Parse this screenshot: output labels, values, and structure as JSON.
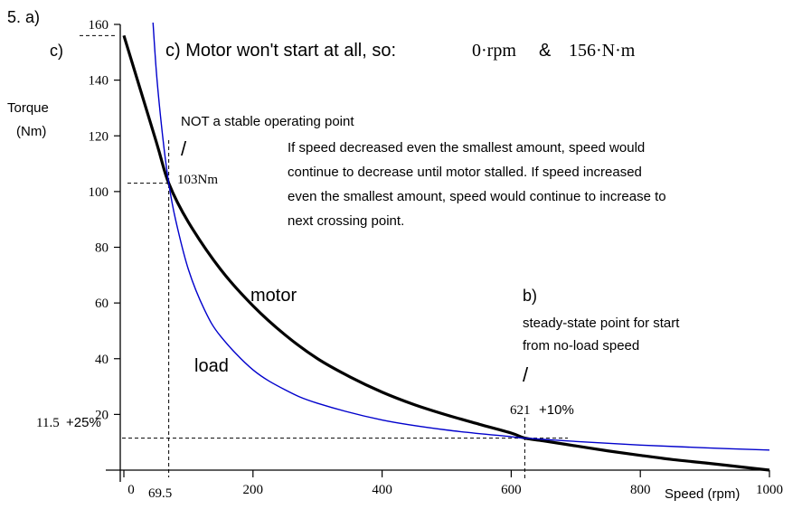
{
  "chart_data": {
    "type": "line",
    "problem_label": "5. a)",
    "xlabel": "Speed  (rpm)",
    "ylabel_line1": "Torque",
    "ylabel_line2": "(Nm)",
    "xlim": [
      0,
      1000
    ],
    "ylim": [
      0,
      160
    ],
    "x_ticks": [
      "0",
      "200",
      "400",
      "600",
      "800",
      "1000"
    ],
    "x_tick_values": [
      0,
      200,
      400,
      600,
      800,
      1000
    ],
    "y_ticks": [
      "20",
      "40",
      "60",
      "80",
      "100",
      "120",
      "140",
      "160"
    ],
    "y_tick_values": [
      20,
      40,
      60,
      80,
      100,
      120,
      140,
      160
    ],
    "grid": false,
    "series": [
      {
        "name": "motor",
        "color": "#000000",
        "x": [
          0,
          50,
          69.5,
          100,
          150,
          200,
          250,
          300,
          350,
          400,
          450,
          500,
          550,
          600,
          621,
          650,
          700,
          750,
          800,
          850,
          900,
          950,
          1000
        ],
        "y": [
          156,
          118,
          103,
          89,
          72,
          59,
          48.5,
          40,
          33.5,
          28,
          23.5,
          19.8,
          16.5,
          13.3,
          11.5,
          10.5,
          8.7,
          6.9,
          5.3,
          3.8,
          2.6,
          1.3,
          0
        ]
      },
      {
        "name": "load",
        "color": "#0000cc",
        "x": [
          40,
          50,
          60,
          69.5,
          80,
          100,
          125,
          150,
          200,
          250,
          300,
          400,
          500,
          600,
          621,
          700,
          800,
          900,
          1000
        ],
        "y": [
          180,
          144,
          120,
          103,
          90,
          72,
          57.5,
          48,
          36,
          28.8,
          24,
          18,
          14.4,
          12,
          11.5,
          10.3,
          9,
          8,
          7.2
        ]
      }
    ],
    "annotations": {
      "c_label": "c)",
      "c_statement": "c)  Motor won't start at all, so:",
      "c_rpm": "0·rpm",
      "c_amp": "&",
      "c_torque": "156·N·m",
      "unstable_title": "NOT a stable operating point",
      "slash": "/",
      "unstable_torque": "103Nm",
      "unstable_speed": "69.5",
      "explanation": [
        "If speed decreased even the smallest amount, speed would",
        "continue to decrease until motor stalled.  If speed increased",
        "even the smallest amount, speed would continue to increase to",
        "next crossing point."
      ],
      "motor_label": "motor",
      "load_label": "load",
      "b_label": "b)",
      "steady_line1": "steady-state point for start",
      "steady_line2": "from no-load speed",
      "steady_speed_value": "621",
      "steady_speed_tol": "+10%",
      "steady_torque_value": "11.5",
      "steady_torque_tol": "+25%"
    }
  }
}
